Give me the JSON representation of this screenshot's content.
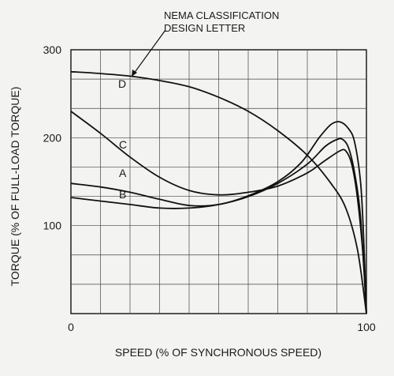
{
  "chart_data": {
    "type": "line",
    "title": "",
    "xlabel": "SPEED (% OF SYNCHRONOUS SPEED)",
    "ylabel": "TORQUE (% OF FULL-LOAD TORQUE)",
    "xlim": [
      0,
      100
    ],
    "ylim": [
      0,
      300
    ],
    "x_ticks": [
      "0",
      "100"
    ],
    "y_ticks": [
      "100",
      "200",
      "300"
    ],
    "grid": true,
    "annotation": [
      "NEMA CLASSIFICATION",
      "DESIGN LETTER"
    ],
    "series": [
      {
        "name": "A",
        "points": [
          [
            0,
            148
          ],
          [
            10,
            144
          ],
          [
            20,
            138
          ],
          [
            30,
            130
          ],
          [
            40,
            123
          ],
          [
            50,
            124
          ],
          [
            60,
            134
          ],
          [
            70,
            150
          ],
          [
            78,
            172
          ],
          [
            84,
            200
          ],
          [
            88,
            215
          ],
          [
            91,
            218
          ],
          [
            94,
            210
          ],
          [
            96,
            195
          ],
          [
            98,
            150
          ],
          [
            99,
            90
          ],
          [
            100,
            0
          ]
        ]
      },
      {
        "name": "B",
        "points": [
          [
            0,
            132
          ],
          [
            10,
            128
          ],
          [
            20,
            124
          ],
          [
            30,
            120
          ],
          [
            40,
            120
          ],
          [
            50,
            124
          ],
          [
            60,
            133
          ],
          [
            70,
            148
          ],
          [
            80,
            170
          ],
          [
            86,
            190
          ],
          [
            90,
            198
          ],
          [
            92,
            198
          ],
          [
            94,
            188
          ],
          [
            96,
            160
          ],
          [
            98,
            110
          ],
          [
            100,
            0
          ]
        ]
      },
      {
        "name": "C",
        "points": [
          [
            0,
            230
          ],
          [
            10,
            205
          ],
          [
            20,
            178
          ],
          [
            30,
            155
          ],
          [
            40,
            140
          ],
          [
            50,
            135
          ],
          [
            60,
            138
          ],
          [
            70,
            145
          ],
          [
            80,
            160
          ],
          [
            86,
            174
          ],
          [
            91,
            185
          ],
          [
            93,
            185
          ],
          [
            95,
            170
          ],
          [
            97,
            130
          ],
          [
            99,
            60
          ],
          [
            100,
            0
          ]
        ]
      },
      {
        "name": "D",
        "points": [
          [
            0,
            275
          ],
          [
            10,
            273
          ],
          [
            20,
            270
          ],
          [
            30,
            265
          ],
          [
            40,
            258
          ],
          [
            50,
            246
          ],
          [
            60,
            230
          ],
          [
            70,
            208
          ],
          [
            80,
            180
          ],
          [
            88,
            148
          ],
          [
            93,
            120
          ],
          [
            97,
            72
          ],
          [
            100,
            0
          ]
        ]
      }
    ]
  }
}
